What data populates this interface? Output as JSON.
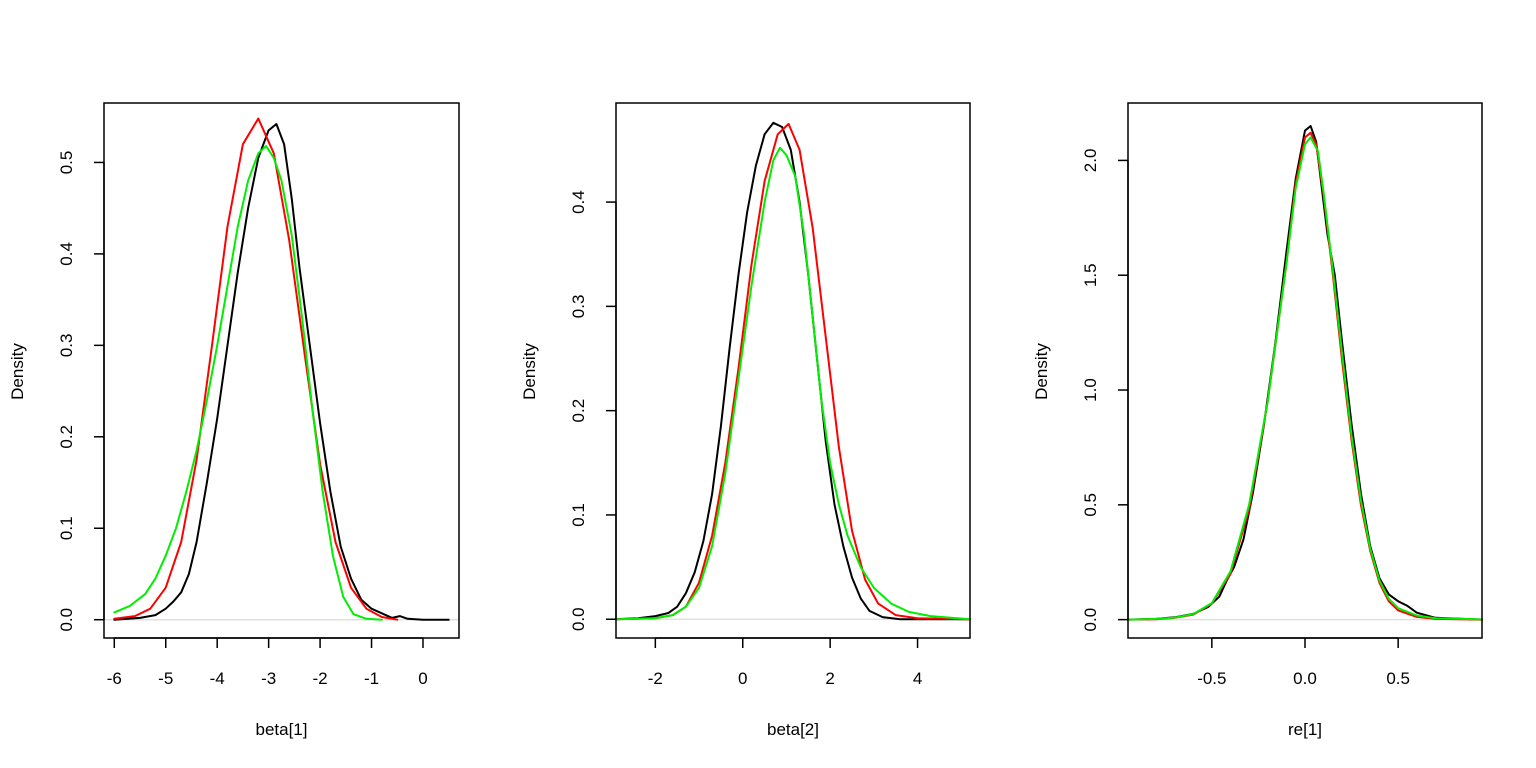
{
  "chart_data": [
    {
      "type": "line",
      "xlabel": "beta[1]",
      "ylabel": "Density",
      "xlim": [
        -6.2,
        0.7
      ],
      "ylim": [
        -0.02,
        0.565
      ],
      "x_ticks": [
        -6,
        -5,
        -4,
        -3,
        -2,
        -1,
        0
      ],
      "x_tick_labels": [
        "-6",
        "-5",
        "-4",
        "-3",
        "-2",
        "-1",
        "0"
      ],
      "y_ticks": [
        0.0,
        0.1,
        0.2,
        0.3,
        0.4,
        0.5
      ],
      "y_tick_labels": [
        "0.0",
        "0.1",
        "0.2",
        "0.3",
        "0.4",
        "0.5"
      ],
      "baseline_y": 0,
      "grid": false,
      "series": [
        {
          "color": "#000000",
          "points": [
            [
              -6.0,
              0.0
            ],
            [
              -5.5,
              0.002
            ],
            [
              -5.2,
              0.005
            ],
            [
              -5.0,
              0.012
            ],
            [
              -4.85,
              0.02
            ],
            [
              -4.7,
              0.03
            ],
            [
              -4.55,
              0.05
            ],
            [
              -4.4,
              0.085
            ],
            [
              -4.2,
              0.15
            ],
            [
              -4.0,
              0.22
            ],
            [
              -3.8,
              0.3
            ],
            [
              -3.6,
              0.38
            ],
            [
              -3.4,
              0.45
            ],
            [
              -3.2,
              0.505
            ],
            [
              -3.0,
              0.535
            ],
            [
              -2.85,
              0.542
            ],
            [
              -2.7,
              0.52
            ],
            [
              -2.55,
              0.46
            ],
            [
              -2.4,
              0.385
            ],
            [
              -2.2,
              0.3
            ],
            [
              -2.0,
              0.215
            ],
            [
              -1.8,
              0.14
            ],
            [
              -1.6,
              0.08
            ],
            [
              -1.4,
              0.045
            ],
            [
              -1.2,
              0.022
            ],
            [
              -1.0,
              0.012
            ],
            [
              -0.8,
              0.007
            ],
            [
              -0.6,
              0.002
            ],
            [
              -0.45,
              0.004
            ],
            [
              -0.3,
              0.001
            ],
            [
              0.0,
              0.0
            ],
            [
              0.5,
              0.0
            ]
          ]
        },
        {
          "color": "#ff0000",
          "points": [
            [
              -6.0,
              0.001
            ],
            [
              -5.6,
              0.004
            ],
            [
              -5.3,
              0.012
            ],
            [
              -5.0,
              0.035
            ],
            [
              -4.7,
              0.085
            ],
            [
              -4.4,
              0.175
            ],
            [
              -4.1,
              0.3
            ],
            [
              -3.8,
              0.43
            ],
            [
              -3.5,
              0.52
            ],
            [
              -3.2,
              0.548
            ],
            [
              -2.9,
              0.51
            ],
            [
              -2.6,
              0.415
            ],
            [
              -2.3,
              0.29
            ],
            [
              -2.0,
              0.17
            ],
            [
              -1.7,
              0.085
            ],
            [
              -1.4,
              0.035
            ],
            [
              -1.1,
              0.012
            ],
            [
              -0.8,
              0.003
            ],
            [
              -0.5,
              0.0
            ]
          ]
        },
        {
          "color": "#00ee00",
          "points": [
            [
              -6.0,
              0.008
            ],
            [
              -5.7,
              0.015
            ],
            [
              -5.4,
              0.028
            ],
            [
              -5.2,
              0.045
            ],
            [
              -5.0,
              0.07
            ],
            [
              -4.8,
              0.1
            ],
            [
              -4.6,
              0.14
            ],
            [
              -4.4,
              0.185
            ],
            [
              -4.2,
              0.24
            ],
            [
              -4.0,
              0.3
            ],
            [
              -3.8,
              0.365
            ],
            [
              -3.6,
              0.43
            ],
            [
              -3.4,
              0.48
            ],
            [
              -3.2,
              0.51
            ],
            [
              -3.05,
              0.518
            ],
            [
              -2.9,
              0.505
            ],
            [
              -2.75,
              0.48
            ],
            [
              -2.55,
              0.42
            ],
            [
              -2.35,
              0.33
            ],
            [
              -2.15,
              0.23
            ],
            [
              -1.95,
              0.14
            ],
            [
              -1.75,
              0.07
            ],
            [
              -1.55,
              0.025
            ],
            [
              -1.35,
              0.006
            ],
            [
              -1.1,
              0.001
            ],
            [
              -0.8,
              0.0
            ]
          ]
        }
      ]
    },
    {
      "type": "line",
      "xlabel": "beta[2]",
      "ylabel": "Density",
      "xlim": [
        -2.9,
        5.2
      ],
      "ylim": [
        -0.018,
        0.495
      ],
      "x_ticks": [
        -2,
        0,
        2,
        4
      ],
      "x_tick_labels": [
        "-2",
        "0",
        "2",
        "4"
      ],
      "y_ticks": [
        0.0,
        0.1,
        0.2,
        0.3,
        0.4
      ],
      "y_tick_labels": [
        "0.0",
        "0.1",
        "0.2",
        "0.3",
        "0.4"
      ],
      "baseline_y": 0,
      "grid": false,
      "series": [
        {
          "color": "#000000",
          "points": [
            [
              -2.9,
              0.0
            ],
            [
              -2.4,
              0.001
            ],
            [
              -2.0,
              0.003
            ],
            [
              -1.7,
              0.006
            ],
            [
              -1.5,
              0.012
            ],
            [
              -1.3,
              0.025
            ],
            [
              -1.1,
              0.045
            ],
            [
              -0.9,
              0.075
            ],
            [
              -0.7,
              0.12
            ],
            [
              -0.5,
              0.185
            ],
            [
              -0.3,
              0.26
            ],
            [
              -0.1,
              0.33
            ],
            [
              0.1,
              0.39
            ],
            [
              0.3,
              0.435
            ],
            [
              0.5,
              0.465
            ],
            [
              0.7,
              0.476
            ],
            [
              0.9,
              0.472
            ],
            [
              1.1,
              0.45
            ],
            [
              1.3,
              0.4
            ],
            [
              1.5,
              0.33
            ],
            [
              1.7,
              0.25
            ],
            [
              1.9,
              0.17
            ],
            [
              2.1,
              0.11
            ],
            [
              2.3,
              0.07
            ],
            [
              2.5,
              0.04
            ],
            [
              2.7,
              0.02
            ],
            [
              2.9,
              0.008
            ],
            [
              3.2,
              0.002
            ],
            [
              3.6,
              0.0
            ],
            [
              5.2,
              0.0
            ]
          ]
        },
        {
          "color": "#ff0000",
          "points": [
            [
              -2.9,
              0.0
            ],
            [
              -2.0,
              0.001
            ],
            [
              -1.6,
              0.004
            ],
            [
              -1.3,
              0.012
            ],
            [
              -1.0,
              0.035
            ],
            [
              -0.7,
              0.08
            ],
            [
              -0.4,
              0.15
            ],
            [
              -0.1,
              0.24
            ],
            [
              0.2,
              0.34
            ],
            [
              0.5,
              0.42
            ],
            [
              0.8,
              0.465
            ],
            [
              1.05,
              0.475
            ],
            [
              1.3,
              0.45
            ],
            [
              1.6,
              0.375
            ],
            [
              1.9,
              0.27
            ],
            [
              2.2,
              0.165
            ],
            [
              2.5,
              0.085
            ],
            [
              2.8,
              0.038
            ],
            [
              3.1,
              0.015
            ],
            [
              3.5,
              0.004
            ],
            [
              4.0,
              0.001
            ],
            [
              5.2,
              0.0
            ]
          ]
        },
        {
          "color": "#00ee00",
          "points": [
            [
              -2.9,
              0.0
            ],
            [
              -2.0,
              0.001
            ],
            [
              -1.6,
              0.004
            ],
            [
              -1.3,
              0.012
            ],
            [
              -1.0,
              0.03
            ],
            [
              -0.7,
              0.07
            ],
            [
              -0.4,
              0.14
            ],
            [
              -0.1,
              0.23
            ],
            [
              0.2,
              0.32
            ],
            [
              0.5,
              0.4
            ],
            [
              0.7,
              0.44
            ],
            [
              0.85,
              0.452
            ],
            [
              1.0,
              0.445
            ],
            [
              1.2,
              0.425
            ],
            [
              1.4,
              0.37
            ],
            [
              1.6,
              0.29
            ],
            [
              1.8,
              0.21
            ],
            [
              2.0,
              0.15
            ],
            [
              2.2,
              0.11
            ],
            [
              2.4,
              0.08
            ],
            [
              2.7,
              0.05
            ],
            [
              3.0,
              0.03
            ],
            [
              3.4,
              0.015
            ],
            [
              3.8,
              0.007
            ],
            [
              4.3,
              0.003
            ],
            [
              5.2,
              0.0
            ]
          ]
        }
      ]
    },
    {
      "type": "line",
      "xlabel": "re[1]",
      "ylabel": "Density",
      "xlim": [
        -0.95,
        0.95
      ],
      "ylim": [
        -0.08,
        2.25
      ],
      "x_ticks": [
        -0.5,
        0.0,
        0.5
      ],
      "x_tick_labels": [
        "-0.5",
        "0.0",
        "0.5"
      ],
      "y_ticks": [
        0.0,
        0.5,
        1.0,
        1.5,
        2.0
      ],
      "y_tick_labels": [
        "0.0",
        "0.5",
        "1.0",
        "1.5",
        "2.0"
      ],
      "baseline_y": 0,
      "grid": false,
      "series": [
        {
          "color": "#000000",
          "points": [
            [
              -0.95,
              0.0
            ],
            [
              -0.8,
              0.003
            ],
            [
              -0.7,
              0.01
            ],
            [
              -0.6,
              0.025
            ],
            [
              -0.52,
              0.055
            ],
            [
              -0.46,
              0.1
            ],
            [
              -0.42,
              0.17
            ],
            [
              -0.38,
              0.23
            ],
            [
              -0.33,
              0.35
            ],
            [
              -0.28,
              0.55
            ],
            [
              -0.22,
              0.85
            ],
            [
              -0.16,
              1.2
            ],
            [
              -0.1,
              1.6
            ],
            [
              -0.05,
              1.92
            ],
            [
              0.0,
              2.13
            ],
            [
              0.03,
              2.15
            ],
            [
              0.06,
              2.08
            ],
            [
              0.09,
              1.88
            ],
            [
              0.12,
              1.68
            ],
            [
              0.16,
              1.5
            ],
            [
              0.2,
              1.2
            ],
            [
              0.25,
              0.85
            ],
            [
              0.3,
              0.55
            ],
            [
              0.35,
              0.32
            ],
            [
              0.4,
              0.18
            ],
            [
              0.45,
              0.11
            ],
            [
              0.5,
              0.08
            ],
            [
              0.55,
              0.06
            ],
            [
              0.6,
              0.03
            ],
            [
              0.7,
              0.008
            ],
            [
              0.95,
              0.0
            ]
          ]
        },
        {
          "color": "#ff0000",
          "points": [
            [
              -0.95,
              0.0
            ],
            [
              -0.8,
              0.002
            ],
            [
              -0.7,
              0.008
            ],
            [
              -0.6,
              0.022
            ],
            [
              -0.5,
              0.07
            ],
            [
              -0.4,
              0.2
            ],
            [
              -0.3,
              0.48
            ],
            [
              -0.2,
              0.95
            ],
            [
              -0.1,
              1.55
            ],
            [
              -0.05,
              1.9
            ],
            [
              0.0,
              2.1
            ],
            [
              0.03,
              2.12
            ],
            [
              0.06,
              2.07
            ],
            [
              0.1,
              1.85
            ],
            [
              0.15,
              1.5
            ],
            [
              0.2,
              1.12
            ],
            [
              0.25,
              0.78
            ],
            [
              0.3,
              0.5
            ],
            [
              0.35,
              0.3
            ],
            [
              0.4,
              0.16
            ],
            [
              0.45,
              0.08
            ],
            [
              0.5,
              0.04
            ],
            [
              0.6,
              0.012
            ],
            [
              0.7,
              0.003
            ],
            [
              0.95,
              0.0
            ]
          ]
        },
        {
          "color": "#00ee00",
          "points": [
            [
              -0.95,
              0.0
            ],
            [
              -0.8,
              0.003
            ],
            [
              -0.7,
              0.009
            ],
            [
              -0.6,
              0.024
            ],
            [
              -0.5,
              0.072
            ],
            [
              -0.4,
              0.21
            ],
            [
              -0.3,
              0.5
            ],
            [
              -0.2,
              0.95
            ],
            [
              -0.1,
              1.55
            ],
            [
              -0.05,
              1.88
            ],
            [
              0.0,
              2.07
            ],
            [
              0.03,
              2.1
            ],
            [
              0.07,
              2.04
            ],
            [
              0.1,
              1.86
            ],
            [
              0.15,
              1.52
            ],
            [
              0.2,
              1.15
            ],
            [
              0.25,
              0.8
            ],
            [
              0.3,
              0.52
            ],
            [
              0.35,
              0.31
            ],
            [
              0.4,
              0.17
            ],
            [
              0.45,
              0.09
            ],
            [
              0.5,
              0.05
            ],
            [
              0.6,
              0.018
            ],
            [
              0.7,
              0.006
            ],
            [
              0.95,
              0.001
            ]
          ]
        }
      ]
    }
  ]
}
